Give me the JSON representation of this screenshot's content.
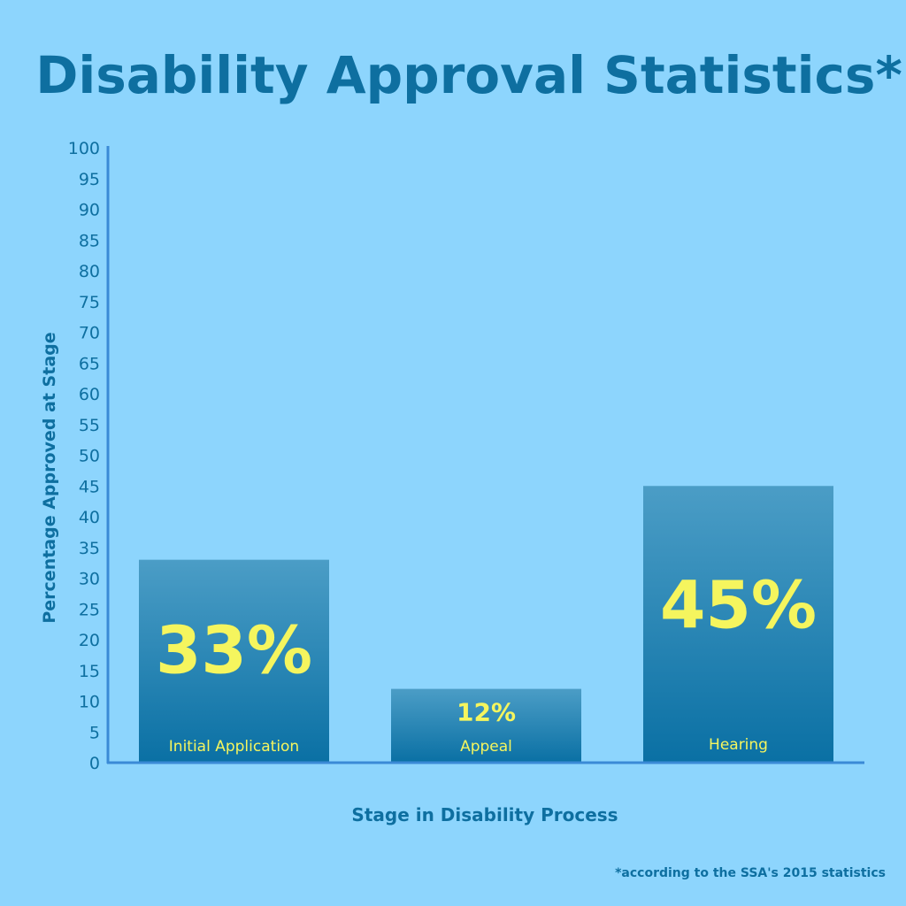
{
  "colors": {
    "background": "#8dd5fd",
    "text": "#0e6fa0",
    "bar_top": "#4b9dc6",
    "bar_bottom": "#0a70a4",
    "label": "#f5f55e",
    "axis": "#3a8ad6"
  },
  "chart_data": {
    "type": "bar",
    "title": "Disability Approval Statistics*",
    "xlabel": "Stage in Disability Process",
    "ylabel": "Percentage Approved at Stage",
    "categories": [
      "Initial Application",
      "Appeal",
      "Hearing"
    ],
    "values": [
      33,
      12,
      45
    ],
    "data_labels": [
      "33%",
      "12%",
      "45%"
    ],
    "ylim": [
      0,
      100
    ],
    "yticks": [
      0,
      5,
      10,
      15,
      20,
      25,
      30,
      35,
      40,
      45,
      50,
      55,
      60,
      65,
      70,
      75,
      80,
      85,
      90,
      95,
      100
    ],
    "grid": false,
    "footnote": "*according to the SSA's 2015 statistics"
  }
}
